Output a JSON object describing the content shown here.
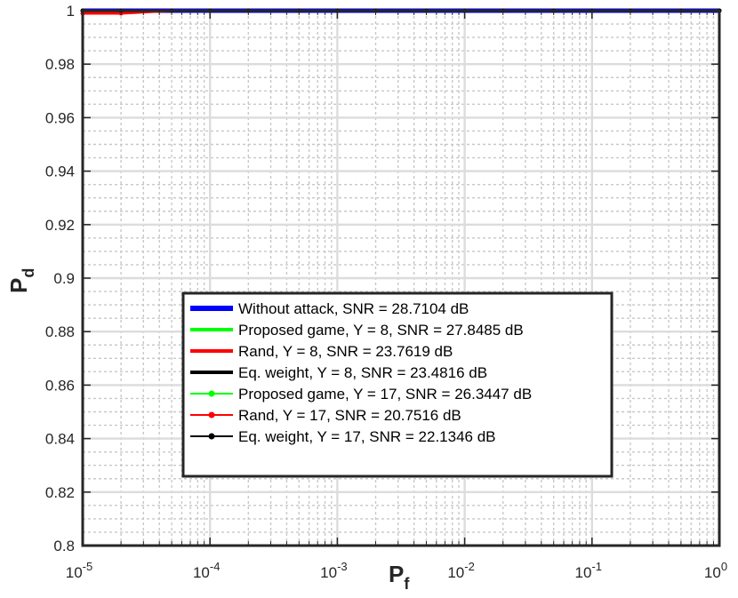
{
  "chart_data": {
    "type": "line",
    "title": "",
    "xlabel": "P",
    "xlabel_sub": "f",
    "ylabel": "P",
    "ylabel_sub": "d",
    "xscale": "log",
    "xlim": [
      1e-05,
      1
    ],
    "ylim": [
      0.8,
      1
    ],
    "grid": true,
    "minor_grid": true,
    "legend_position": "center-bottom",
    "x_ticks": [
      {
        "base": "10",
        "exp": "-5",
        "value": 1e-05
      },
      {
        "base": "10",
        "exp": "-4",
        "value": 0.0001
      },
      {
        "base": "10",
        "exp": "-3",
        "value": 0.001
      },
      {
        "base": "10",
        "exp": "-2",
        "value": 0.01
      },
      {
        "base": "10",
        "exp": "-1",
        "value": 0.1
      },
      {
        "base": "10",
        "exp": "0",
        "value": 1
      }
    ],
    "y_ticks": [
      {
        "label": "1",
        "value": 1
      },
      {
        "label": "0.98",
        "value": 0.98
      },
      {
        "label": "0.96",
        "value": 0.96
      },
      {
        "label": "0.94",
        "value": 0.94
      },
      {
        "label": "0.92",
        "value": 0.92
      },
      {
        "label": "0.9",
        "value": 0.9
      },
      {
        "label": "0.88",
        "value": 0.88
      },
      {
        "label": "0.86",
        "value": 0.86
      },
      {
        "label": "0.84",
        "value": 0.84
      },
      {
        "label": "0.82",
        "value": 0.82
      },
      {
        "label": "0.8",
        "value": 0.8
      }
    ],
    "x": [
      1e-05,
      2e-05,
      5e-05,
      0.0001,
      0.0002,
      0.0005,
      0.001,
      0.002,
      0.005,
      0.01,
      0.02,
      0.05,
      0.1,
      0.2,
      0.5,
      1
    ],
    "series": [
      {
        "name": "Without attack, SNR = 28.7104 dB",
        "color": "#0000ff",
        "marker": "none",
        "values": [
          1,
          1,
          1,
          1,
          1,
          1,
          1,
          1,
          1,
          1,
          1,
          1,
          1,
          1,
          1,
          1
        ]
      },
      {
        "name": "Proposed game, Y = 8, SNR = 27.8485 dB",
        "color": "#00ff00",
        "marker": "none",
        "values": [
          1,
          1,
          1,
          1,
          1,
          1,
          1,
          1,
          1,
          1,
          1,
          1,
          1,
          1,
          1,
          1
        ]
      },
      {
        "name": "Rand, Y = 8, SNR = 23.7619 dB",
        "color": "#ff0000",
        "marker": "none",
        "values": [
          0.999,
          0.999,
          1,
          1,
          1,
          1,
          1,
          1,
          1,
          1,
          1,
          1,
          1,
          1,
          1,
          1
        ]
      },
      {
        "name": "Eq. weight, Y = 8, SNR = 23.4816 dB",
        "color": "#000000",
        "marker": "none",
        "values": [
          1,
          1,
          1,
          1,
          1,
          1,
          1,
          1,
          1,
          1,
          1,
          1,
          1,
          1,
          1,
          1
        ]
      },
      {
        "name": "Proposed game, Y = 17, SNR = 26.3447 dB",
        "color": "#00ff00",
        "marker": "asterisk",
        "values": [
          1,
          1,
          1,
          1,
          1,
          1,
          1,
          1,
          1,
          1,
          1,
          1,
          1,
          1,
          1,
          1
        ]
      },
      {
        "name": "Rand, Y = 17, SNR = 20.7516 dB",
        "color": "#ff0000",
        "marker": "asterisk",
        "values": [
          0.999,
          0.999,
          1,
          1,
          1,
          1,
          1,
          1,
          1,
          1,
          1,
          1,
          1,
          1,
          1,
          1
        ]
      },
      {
        "name": "Eq. weight, Y = 17, SNR = 22.1346 dB",
        "color": "#000000",
        "marker": "asterisk",
        "values": [
          1,
          1,
          1,
          1,
          1,
          1,
          1,
          1,
          1,
          1,
          1,
          1,
          1,
          1,
          1,
          1
        ]
      }
    ]
  }
}
